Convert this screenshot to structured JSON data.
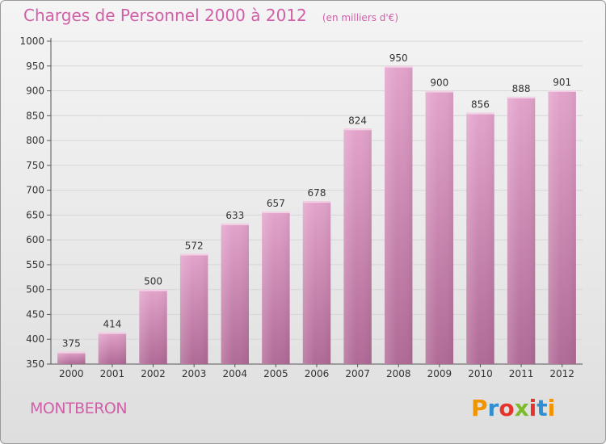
{
  "header": {
    "title": "Charges de Personnel 2000 à 2012",
    "subtitle": "(en milliers d'€)"
  },
  "footer": {
    "commune": "MONTBERON",
    "logo_text": "Proxiti",
    "logo_colors": [
      "#f29400",
      "#2f8fd1",
      "#e4342c",
      "#7dbb2a",
      "#e4342c",
      "#2f8fd1",
      "#f29400"
    ]
  },
  "colors": {
    "bar_top": "#e3a3cb",
    "bar_bottom": "#b06a96",
    "accent": "#d05fa8",
    "grid": "#d6d6d6"
  },
  "chart_data": {
    "type": "bar",
    "categories": [
      "2000",
      "2001",
      "2002",
      "2003",
      "2004",
      "2005",
      "2006",
      "2007",
      "2008",
      "2009",
      "2010",
      "2011",
      "2012"
    ],
    "values": [
      375,
      414,
      500,
      572,
      633,
      657,
      678,
      824,
      950,
      900,
      856,
      888,
      901
    ],
    "ylim": [
      350,
      1000
    ],
    "yticks": [
      350,
      400,
      450,
      500,
      550,
      600,
      650,
      700,
      750,
      800,
      850,
      900,
      950,
      1000
    ],
    "grid": true
  }
}
